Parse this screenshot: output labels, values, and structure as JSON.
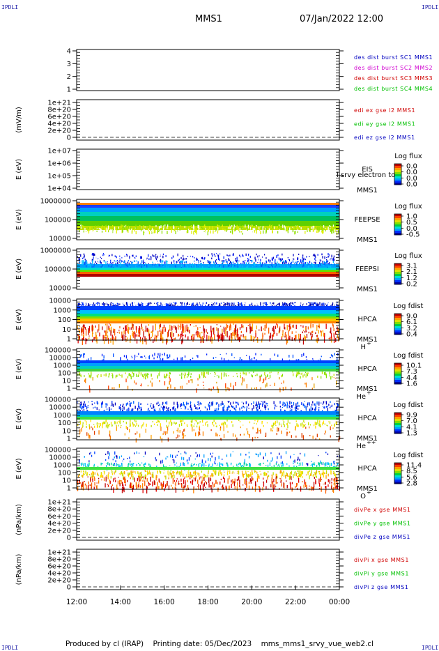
{
  "header": {
    "corner_label": "IPDLI",
    "satellite": "MMS1",
    "date_time": "07/Jan/2022 12:00"
  },
  "footer": {
    "produced_by": "Produced by cl (IRAP)",
    "printing_date": "Printing date: 05/Dec/2023",
    "filename": "mms_mms1_srvy_vue_web2.cl"
  },
  "colors": {
    "c_blue": "#0000c0",
    "c_magenta": "#d000d0",
    "c_red": "#d00000",
    "c_green": "#00c000"
  },
  "chart_data": {
    "type": "multi-panel time series / spectrogram stack",
    "x_ticks": [
      "12:00",
      "14:00",
      "16:00",
      "18:00",
      "20:00",
      "22:00",
      "00:00"
    ],
    "panels": [
      {
        "id": "dist",
        "type": "line",
        "ylabel": "",
        "yticks": [
          "4",
          "3",
          "2",
          "1"
        ],
        "legend": [
          {
            "text": "des dist burst SC1 MMS1",
            "color": "#0000c0"
          },
          {
            "text": "des dist burst SC2 MMS2",
            "color": "#d000d0"
          },
          {
            "text": "des dist burst SC3 MMS3",
            "color": "#d00000"
          },
          {
            "text": "des dist burst SC4 MMS4",
            "color": "#00c000"
          }
        ]
      },
      {
        "id": "edi",
        "type": "line",
        "ylabel": "(mV/m)",
        "yticks": [
          "1e+21",
          "8e+20",
          "6e+20",
          "4e+20",
          "2e+20",
          "0"
        ],
        "legend": [
          {
            "text": "edi ex gse l2 MMS1",
            "color": "#d00000"
          },
          {
            "text": "edi ey gse l2 MMS1",
            "color": "#00c000"
          },
          {
            "text": "edi ez gse l2 MMS1",
            "color": "#0000c0"
          }
        ]
      },
      {
        "id": "eis",
        "type": "heatmap",
        "ylabel": "E (eV)",
        "yticks": [
          "1e+07",
          "1e+06",
          "1e+05",
          "1e+04"
        ],
        "labels": [
          "EIS",
          "MMS1"
        ],
        "overlay_text": "l srvy electron to",
        "cbar_title": "Log flux",
        "cbar_ticks": [
          "0.0",
          "0.0",
          "0.0",
          "0.0"
        ]
      },
      {
        "id": "feepse",
        "type": "heatmap",
        "ylabel": "E (eV)",
        "yticks": [
          "1000000",
          "100000",
          "10000"
        ],
        "labels": [
          "FEEPSE",
          "MMS1"
        ],
        "cbar_title": "Log flux",
        "cbar_ticks": [
          "1.0",
          "0.5",
          "0.0",
          "-0.5"
        ]
      },
      {
        "id": "feepsi",
        "type": "heatmap",
        "ylabel": "E (eV)",
        "yticks": [
          "1000000",
          "100000",
          "10000"
        ],
        "labels": [
          "FEEPSI",
          "MMS1"
        ],
        "cbar_title": "Log flux",
        "cbar_ticks": [
          "3.1",
          "2.1",
          "1.2",
          "0.2"
        ]
      },
      {
        "id": "hpca_h",
        "type": "heatmap",
        "ylabel": "E (eV)",
        "yticks": [
          "10000",
          "1000",
          "100",
          "10",
          "1"
        ],
        "labels": [
          "HPCA",
          "MMS1"
        ],
        "species": "H",
        "charge": "+",
        "cbar_title": "Log fdist",
        "cbar_ticks": [
          "9.0",
          "6.1",
          "3.2",
          "0.4"
        ]
      },
      {
        "id": "hpca_he",
        "type": "heatmap",
        "ylabel": "E (eV)",
        "yticks": [
          "100000",
          "10000",
          "1000",
          "100",
          "10",
          "1"
        ],
        "labels": [
          "HPCA",
          "MMS1"
        ],
        "species": "He",
        "charge": "+",
        "cbar_title": "Log fdist",
        "cbar_ticks": [
          "10.1",
          "7.3",
          "4.4",
          "1.6"
        ]
      },
      {
        "id": "hpca_he2",
        "type": "heatmap",
        "ylabel": "E (eV)",
        "yticks": [
          "100000",
          "10000",
          "1000",
          "100",
          "10",
          "1"
        ],
        "labels": [
          "HPCA",
          "MMS1"
        ],
        "species": "He",
        "charge": "++",
        "cbar_title": "Log fdist",
        "cbar_ticks": [
          "9.9",
          "7.0",
          "4.1",
          "1.3"
        ]
      },
      {
        "id": "hpca_o",
        "type": "heatmap",
        "ylabel": "E (eV)",
        "yticks": [
          "100000",
          "10000",
          "1000",
          "100",
          "10",
          "1"
        ],
        "labels": [
          "HPCA",
          "MMS1"
        ],
        "species": "O",
        "charge": "+",
        "cbar_title": "Log fdist",
        "cbar_ticks": [
          "11.4",
          "8.5",
          "5.6",
          "2.8"
        ]
      },
      {
        "id": "divpe",
        "type": "line",
        "ylabel": "(nPa/km)",
        "yticks": [
          "1e+21",
          "8e+20",
          "6e+20",
          "4e+20",
          "2e+20",
          "0"
        ],
        "legend": [
          {
            "text": "divPe x gse MMS1",
            "color": "#d00000"
          },
          {
            "text": "divPe y gse MMS1",
            "color": "#00c000"
          },
          {
            "text": "divPe z gse MMS1",
            "color": "#0000c0"
          }
        ]
      },
      {
        "id": "divpi",
        "type": "line",
        "ylabel": "(nPa/km)",
        "yticks": [
          "1e+21",
          "8e+20",
          "6e+20",
          "4e+20",
          "2e+20",
          "0"
        ],
        "legend": [
          {
            "text": "divPi x gse MMS1",
            "color": "#d00000"
          },
          {
            "text": "divPi y gse MMS1",
            "color": "#00c000"
          },
          {
            "text": "divPi z gse MMS1",
            "color": "#0000c0"
          }
        ]
      }
    ]
  }
}
